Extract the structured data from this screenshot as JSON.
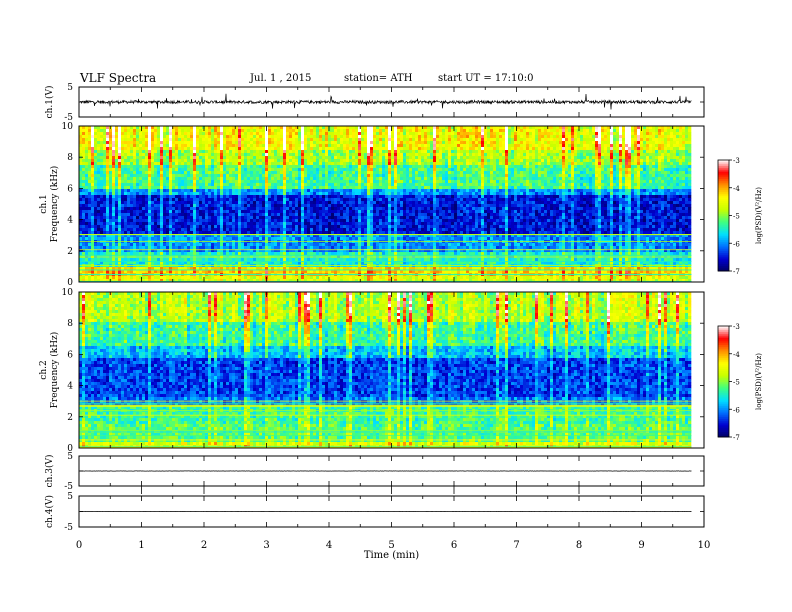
{
  "header": {
    "title": "VLF Spectra",
    "date": "Jul. 1 , 2015",
    "station": "station= ATH",
    "start": "start UT = 17:10:0"
  },
  "chart_data": [
    {
      "type": "line",
      "panel": "ch1-waveform",
      "ylabel": "ch.1(V)",
      "ylim": [
        -5,
        5
      ],
      "yticks": [
        "5",
        "-5"
      ],
      "xlim": [
        0,
        10
      ],
      "data_extent_min": 9.8,
      "signal": "noisy waveform centered near 0 V, amplitude about ±1 V with spikes to ±3 V"
    },
    {
      "type": "heatmap",
      "panel": "ch1-spectrogram",
      "ylabel": "ch.1\nFrequency (kHz)",
      "ylim": [
        0,
        10
      ],
      "yticks": [
        "0",
        "2",
        "4",
        "6",
        "8",
        "10"
      ],
      "xlim": [
        0,
        10
      ],
      "colorbar": {
        "label": "log(PSD)(V²/Hz)",
        "range": [
          -7,
          -3
        ],
        "ticks": [
          "-3",
          "-4",
          "-5",
          "-6",
          "-7"
        ]
      },
      "bands_khz_logpsd": [
        [
          0.0,
          0.3,
          -4.6
        ],
        [
          0.3,
          0.9,
          -4.2
        ],
        [
          0.9,
          2.0,
          -5.5
        ],
        [
          2.0,
          3.0,
          -6.0
        ],
        [
          3.0,
          5.5,
          -6.5
        ],
        [
          5.5,
          6.0,
          -6.0
        ],
        [
          6.0,
          7.5,
          -5.3
        ],
        [
          7.5,
          8.5,
          -4.9
        ],
        [
          8.5,
          10.0,
          -4.5
        ]
      ]
    },
    {
      "type": "heatmap",
      "panel": "ch2-spectrogram",
      "ylabel": "ch.2\nFrequency (kHz)",
      "ylim": [
        0,
        10
      ],
      "yticks": [
        "0",
        "2",
        "4",
        "6",
        "8",
        "10"
      ],
      "xlim": [
        0,
        10
      ],
      "colorbar": {
        "label": "log(PSD)(V²/Hz)",
        "range": [
          -7,
          -3
        ],
        "ticks": [
          "-3",
          "-4",
          "-5",
          "-6",
          "-7"
        ]
      },
      "bands_khz_logpsd": [
        [
          0.0,
          0.4,
          -4.6
        ],
        [
          0.4,
          1.5,
          -5.2
        ],
        [
          1.5,
          2.6,
          -5.3
        ],
        [
          2.6,
          3.2,
          -6.1
        ],
        [
          3.2,
          5.8,
          -6.3
        ],
        [
          5.8,
          6.5,
          -5.8
        ],
        [
          6.5,
          8.0,
          -5.3
        ],
        [
          8.0,
          10.0,
          -4.8
        ]
      ]
    },
    {
      "type": "line",
      "panel": "ch3-waveform",
      "ylabel": "ch.3(V)",
      "ylim": [
        -5,
        5
      ],
      "yticks": [
        "5",
        "-5"
      ],
      "xlim": [
        0,
        10
      ],
      "data_extent_min": 9.8,
      "signal": "flat trace near 0 V"
    },
    {
      "type": "line",
      "panel": "ch4-waveform",
      "ylabel": "ch.4(V)",
      "ylim": [
        -5,
        5
      ],
      "yticks": [
        "5",
        "-5"
      ],
      "xlim": [
        0,
        10
      ],
      "data_extent_min": 9.8,
      "signal": "flat trace near 0 V"
    }
  ],
  "xaxis": {
    "label": "Time (min)",
    "ticks": [
      "0",
      "1",
      "2",
      "3",
      "4",
      "5",
      "6",
      "7",
      "8",
      "9",
      "10"
    ]
  },
  "colors": {
    "colormap": [
      "#000060",
      "#0000d0",
      "#0070ff",
      "#00e0ff",
      "#40ff80",
      "#c8ff00",
      "#ffff00",
      "#ff9000",
      "#ff0000",
      "#ffffff"
    ]
  }
}
